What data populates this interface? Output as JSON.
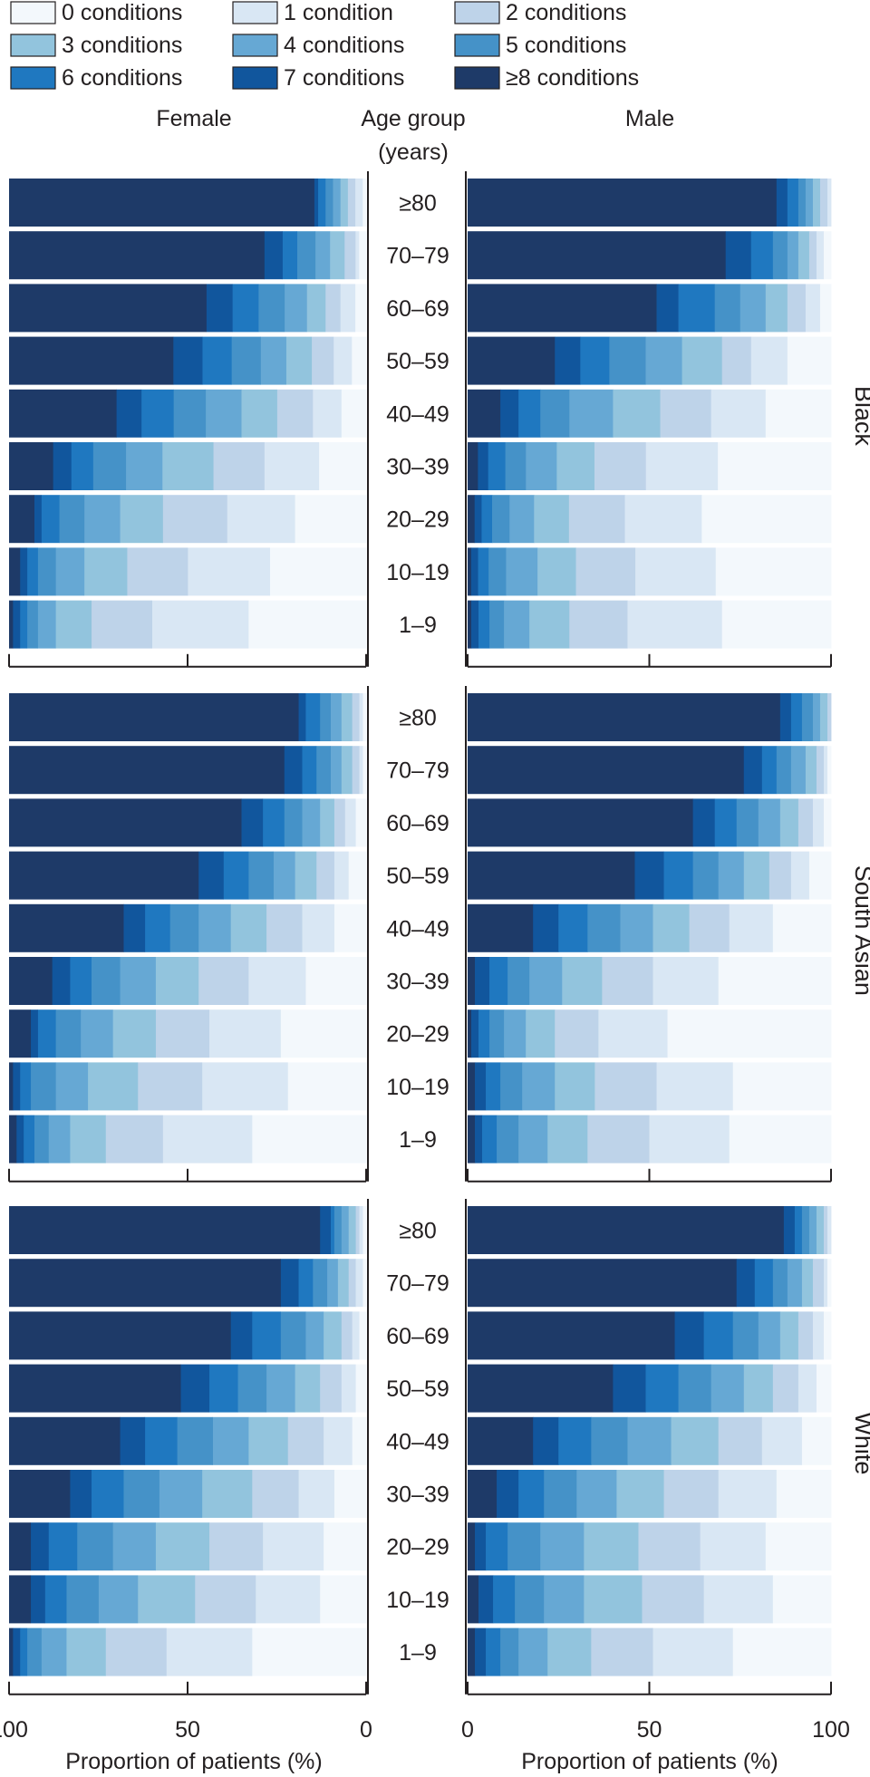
{
  "chart_data": {
    "type": "bar",
    "orientation": "horizontal",
    "stacked": "100%",
    "legend": {
      "placement": "top-left",
      "entries": [
        "0 conditions",
        "1 condition",
        "2 conditions",
        "3 conditions",
        "4 conditions",
        "5 conditions",
        "6 conditions",
        "7 conditions",
        "≥8 conditions"
      ]
    },
    "series_colors": [
      "#f3f8fc",
      "#d9e7f4",
      "#bed3e9",
      "#92c4dd",
      "#66a8d4",
      "#4592c8",
      "#1f78c0",
      "#11569d",
      "#1e3a68"
    ],
    "headers": {
      "female": "Female",
      "center_line1": "Age group",
      "center_line2": "(years)",
      "male": "Male"
    },
    "age_groups": [
      "≥80",
      "70–79",
      "60–69",
      "50–59",
      "40–49",
      "30–39",
      "20–29",
      "10–19",
      "1–9"
    ],
    "xlim": [
      0,
      100
    ],
    "x_ticks": [
      "100",
      "50",
      "0"
    ],
    "x_ticks_male": [
      "0",
      "50",
      "100"
    ],
    "xlabel": "Proportion of patients (%)",
    "panels": [
      {
        "name": "Black",
        "female": [
          [
            1,
            2,
            2,
            2,
            2,
            2,
            2,
            1,
            82
          ],
          [
            2,
            1,
            3,
            4,
            4,
            5,
            4,
            5,
            70
          ],
          [
            3,
            4,
            4,
            5,
            6,
            7,
            7,
            7,
            53
          ],
          [
            4,
            5,
            6,
            7,
            7,
            8,
            8,
            8,
            45
          ],
          [
            7,
            8,
            10,
            10,
            10,
            9,
            9,
            7,
            30
          ],
          [
            13,
            15,
            14,
            14,
            10,
            9,
            6,
            5,
            12
          ],
          [
            20,
            19,
            18,
            12,
            10,
            7,
            5,
            2,
            7
          ],
          [
            27,
            23,
            17,
            12,
            8,
            5,
            3,
            2,
            3
          ],
          [
            33,
            27,
            17,
            10,
            5,
            3,
            2,
            2,
            1
          ]
        ],
        "male": [
          [
            0,
            1,
            2,
            2,
            2,
            2,
            3,
            3,
            85
          ],
          [
            2,
            2,
            2,
            3,
            3,
            4,
            6,
            7,
            71
          ],
          [
            3,
            4,
            5,
            6,
            7,
            7,
            10,
            6,
            52
          ],
          [
            12,
            10,
            8,
            11,
            10,
            10,
            8,
            7,
            24
          ],
          [
            18,
            15,
            14,
            13,
            12,
            8,
            6,
            5,
            9
          ],
          [
            33,
            21,
            15,
            11,
            9,
            6,
            5,
            3,
            3
          ],
          [
            37,
            22,
            16,
            10,
            7,
            5,
            3,
            2,
            2
          ],
          [
            33,
            23,
            17,
            11,
            9,
            5,
            3,
            2,
            1
          ],
          [
            30,
            26,
            16,
            11,
            7,
            4,
            3,
            2,
            1
          ]
        ]
      },
      {
        "name": "South Asian",
        "female": [
          [
            1,
            1,
            2,
            3,
            3,
            3,
            4,
            2,
            81
          ],
          [
            1,
            1,
            2,
            3,
            3,
            4,
            4,
            5,
            77
          ],
          [
            3,
            3,
            3,
            4,
            5,
            5,
            6,
            6,
            65
          ],
          [
            5,
            4,
            5,
            6,
            6,
            7,
            7,
            7,
            53
          ],
          [
            9,
            9,
            10,
            10,
            9,
            8,
            7,
            6,
            32
          ],
          [
            17,
            16,
            14,
            12,
            10,
            8,
            6,
            5,
            12
          ],
          [
            24,
            20,
            15,
            12,
            9,
            7,
            5,
            2,
            6
          ],
          [
            22,
            24,
            18,
            14,
            9,
            7,
            3,
            2,
            1
          ],
          [
            32,
            25,
            16,
            10,
            6,
            4,
            3,
            2,
            2
          ]
        ],
        "male": [
          [
            0,
            0,
            1,
            2,
            2,
            3,
            3,
            3,
            86
          ],
          [
            1,
            1,
            2,
            3,
            4,
            4,
            4,
            5,
            76
          ],
          [
            2,
            3,
            4,
            5,
            6,
            6,
            6,
            6,
            62
          ],
          [
            6,
            5,
            6,
            7,
            7,
            7,
            8,
            8,
            46
          ],
          [
            16,
            12,
            11,
            10,
            9,
            9,
            8,
            7,
            18
          ],
          [
            31,
            18,
            14,
            11,
            9,
            6,
            5,
            4,
            2
          ],
          [
            45,
            19,
            12,
            8,
            6,
            4,
            3,
            2,
            1
          ],
          [
            27,
            21,
            17,
            11,
            9,
            6,
            4,
            3,
            2
          ],
          [
            28,
            22,
            17,
            11,
            8,
            6,
            4,
            2,
            2
          ]
        ]
      },
      {
        "name": "White",
        "female": [
          [
            1,
            1,
            1,
            2,
            2,
            2,
            1,
            3,
            87
          ],
          [
            1,
            2,
            2,
            3,
            3,
            4,
            4,
            5,
            76
          ],
          [
            2,
            2,
            3,
            5,
            5,
            7,
            8,
            6,
            62
          ],
          [
            3,
            4,
            6,
            7,
            8,
            8,
            8,
            8,
            48
          ],
          [
            4,
            8,
            10,
            11,
            10,
            10,
            9,
            7,
            31
          ],
          [
            9,
            10,
            13,
            14,
            12,
            10,
            9,
            6,
            17
          ],
          [
            12,
            17,
            15,
            15,
            12,
            10,
            8,
            5,
            6
          ],
          [
            13,
            18,
            17,
            16,
            11,
            9,
            6,
            4,
            6
          ],
          [
            32,
            24,
            17,
            11,
            7,
            4,
            2,
            2,
            1
          ]
        ],
        "male": [
          [
            0,
            1,
            1,
            2,
            2,
            2,
            2,
            3,
            87
          ],
          [
            1,
            1,
            3,
            3,
            4,
            4,
            5,
            5,
            74
          ],
          [
            2,
            3,
            4,
            5,
            6,
            7,
            8,
            8,
            57
          ],
          [
            4,
            5,
            7,
            8,
            9,
            9,
            9,
            9,
            40
          ],
          [
            8,
            11,
            12,
            13,
            12,
            10,
            9,
            7,
            18
          ],
          [
            15,
            16,
            15,
            13,
            11,
            9,
            7,
            6,
            8
          ],
          [
            18,
            18,
            17,
            15,
            12,
            9,
            6,
            3,
            2
          ],
          [
            16,
            19,
            17,
            16,
            11,
            8,
            6,
            4,
            3
          ],
          [
            27,
            22,
            17,
            12,
            8,
            5,
            4,
            3,
            2
          ]
        ]
      }
    ]
  }
}
